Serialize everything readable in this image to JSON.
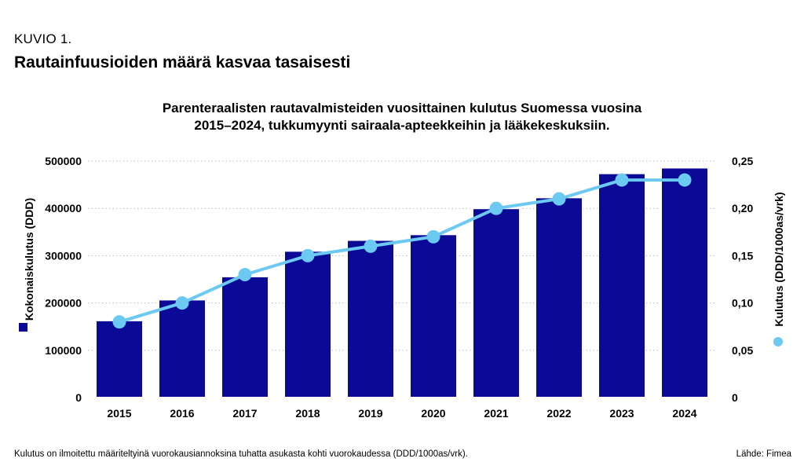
{
  "header": {
    "figure_label": "KUVIO 1.",
    "figure_title": "Rautainfuusioiden määrä kasvaa tasaisesti"
  },
  "footer": {
    "note": "Kulutus on ilmoitettu määriteltyinä vuorokausiannoksina tuhatta asukasta kohti vuorokaudessa (DDD/1000as/vrk).",
    "source": "Lähde: Fimea"
  },
  "chart_data": {
    "type": "bar",
    "title_lines": [
      "Parenteraalisten rautavalmisteiden vuosittainen kulutus Suomessa vuosina",
      "2015–2024, tukkumyynti sairaala-apteekkeihin ja lääkekeskuksiin."
    ],
    "categories": [
      "2015",
      "2016",
      "2017",
      "2018",
      "2019",
      "2020",
      "2021",
      "2022",
      "2023",
      "2024"
    ],
    "series": [
      {
        "name": "Kokonaiskulutus (DDD)",
        "type": "bar",
        "axis": "left",
        "color": "#0a0a96",
        "values": [
          163000,
          207000,
          256000,
          310000,
          333000,
          345000,
          400000,
          423000,
          474000,
          486000
        ]
      },
      {
        "name": "Kulutus (DDD/1000as/vrk)",
        "type": "line",
        "axis": "right",
        "color": "#6cc9f2",
        "values": [
          0.08,
          0.1,
          0.13,
          0.15,
          0.16,
          0.17,
          0.2,
          0.21,
          0.23,
          0.23
        ]
      }
    ],
    "ylabel": "Kokonaiskulutus (DDD)",
    "ylabel_right": "Kulutus (DDD/1000as/vrk)",
    "ylim": [
      0,
      500000
    ],
    "ylim_right": [
      0,
      0.25
    ],
    "yticks": [
      "0",
      "100000",
      "200000",
      "300000",
      "400000",
      "500000"
    ],
    "yticks_right": [
      "0",
      "0,05",
      "0,10",
      "0,15",
      "0,20",
      "0,25"
    ],
    "grid": true,
    "colors": {
      "bar": "#0a0a96",
      "line": "#6cc9f2",
      "grid": "#bdbdbd"
    }
  }
}
